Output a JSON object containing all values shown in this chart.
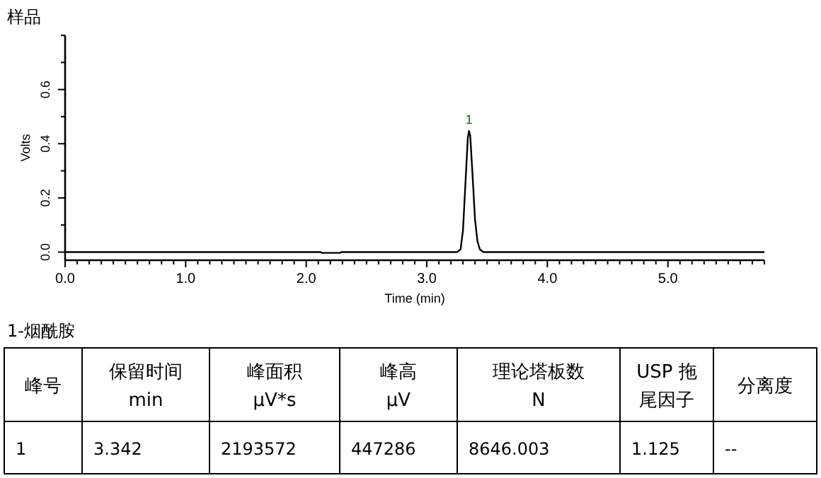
{
  "chart_data": {
    "type": "line",
    "title": "样品",
    "xlabel": "Time (min)",
    "ylabel": "Volts",
    "x": [
      0,
      2.12,
      2.13,
      2.28,
      2.29,
      3.25,
      3.28,
      3.3,
      3.32,
      3.34,
      3.35,
      3.36,
      3.38,
      3.4,
      3.42,
      3.44,
      3.47,
      5.8
    ],
    "series": [
      {
        "color": "#000000",
        "values": [
          0,
          0,
          -0.003,
          -0.003,
          0,
          0,
          0.01,
          0.08,
          0.25,
          0.42,
          0.447,
          0.43,
          0.28,
          0.12,
          0.04,
          0.01,
          0,
          0
        ]
      }
    ],
    "xlim": [
      0,
      5.8
    ],
    "xticks": [
      {
        "value": 0,
        "label": "0.0"
      },
      {
        "value": 0.1,
        "label": null
      },
      {
        "value": 0.2,
        "label": null
      },
      {
        "value": 0.3,
        "label": null
      },
      {
        "value": 0.4,
        "label": null
      },
      {
        "value": 0.5,
        "label": null
      },
      {
        "value": 0.6,
        "label": null
      },
      {
        "value": 0.7,
        "label": null
      },
      {
        "value": 0.8,
        "label": null
      },
      {
        "value": 0.9,
        "label": null
      },
      {
        "value": 1,
        "label": "1.0"
      },
      {
        "value": 1.1,
        "label": null
      },
      {
        "value": 1.2,
        "label": null
      },
      {
        "value": 1.3,
        "label": null
      },
      {
        "value": 1.4,
        "label": null
      },
      {
        "value": 1.5,
        "label": null
      },
      {
        "value": 1.6,
        "label": null
      },
      {
        "value": 1.7,
        "label": null
      },
      {
        "value": 1.8,
        "label": null
      },
      {
        "value": 1.9,
        "label": null
      },
      {
        "value": 2,
        "label": "2.0"
      },
      {
        "value": 2.1,
        "label": null
      },
      {
        "value": 2.2,
        "label": null
      },
      {
        "value": 2.3,
        "label": null
      },
      {
        "value": 2.4,
        "label": null
      },
      {
        "value": 2.5,
        "label": null
      },
      {
        "value": 2.6,
        "label": null
      },
      {
        "value": 2.7,
        "label": null
      },
      {
        "value": 2.8,
        "label": null
      },
      {
        "value": 2.9,
        "label": null
      },
      {
        "value": 3,
        "label": "3.0"
      },
      {
        "value": 3.1,
        "label": null
      },
      {
        "value": 3.2,
        "label": null
      },
      {
        "value": 3.3,
        "label": null
      },
      {
        "value": 3.4,
        "label": null
      },
      {
        "value": 3.5,
        "label": null
      },
      {
        "value": 3.6,
        "label": null
      },
      {
        "value": 3.7,
        "label": null
      },
      {
        "value": 3.8,
        "label": null
      },
      {
        "value": 3.9,
        "label": null
      },
      {
        "value": 4,
        "label": "4.0"
      },
      {
        "value": 4.1,
        "label": null
      },
      {
        "value": 4.2,
        "label": null
      },
      {
        "value": 4.3,
        "label": null
      },
      {
        "value": 4.4,
        "label": null
      },
      {
        "value": 4.5,
        "label": null
      },
      {
        "value": 4.6,
        "label": null
      },
      {
        "value": 4.7,
        "label": null
      },
      {
        "value": 4.8,
        "label": null
      },
      {
        "value": 4.9,
        "label": null
      },
      {
        "value": 5,
        "label": "5.0"
      },
      {
        "value": 5.1,
        "label": null
      },
      {
        "value": 5.2,
        "label": null
      },
      {
        "value": 5.3,
        "label": null
      },
      {
        "value": 5.4,
        "label": null
      },
      {
        "value": 5.5,
        "label": null
      },
      {
        "value": 5.6,
        "label": null
      },
      {
        "value": 5.7,
        "label": null
      },
      {
        "value": 5.8,
        "label": null
      }
    ],
    "ylim": [
      -0.03,
      0.8
    ],
    "yticks": [
      {
        "value": 0,
        "label": "0.0"
      },
      {
        "value": 0.1,
        "label": null
      },
      {
        "value": 0.2,
        "label": "0.2"
      },
      {
        "value": 0.3,
        "label": null
      },
      {
        "value": 0.4,
        "label": "0.4"
      },
      {
        "value": 0.5,
        "label": null
      },
      {
        "value": 0.6,
        "label": "0.6"
      },
      {
        "value": 0.7,
        "label": null
      },
      {
        "value": 0.8,
        "label": null
      }
    ],
    "grid": false,
    "marker": "none",
    "line_style": "solid",
    "annotations": [
      {
        "text": "1",
        "x": 3.35,
        "y": 0.447
      },
      "1-烟酰胺",
      "峰号",
      "保留时间\nmin",
      "峰面积\nμV*s",
      "峰高\nμV",
      "理论塔板数\nN",
      "USP 拖尾因子",
      "分离度",
      "1",
      "3.342",
      "2193572",
      "447286",
      "8646.003",
      "1.125",
      "--"
    ]
  }
}
